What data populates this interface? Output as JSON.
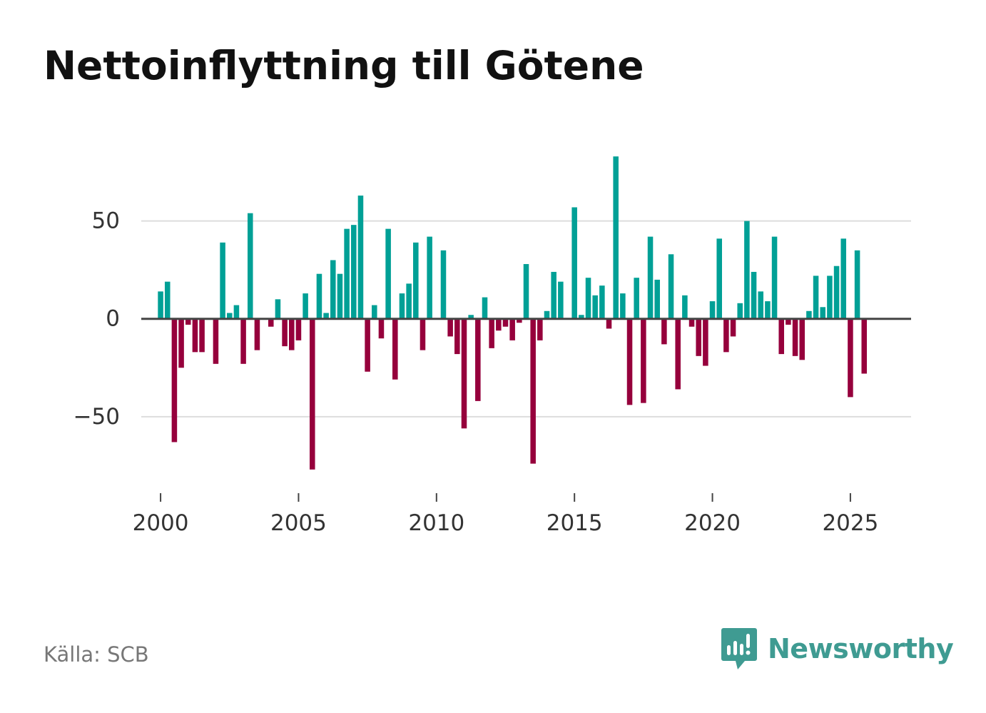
{
  "title": "Nettoinflyttning till Götene",
  "source": "Källa: SCB",
  "brand": {
    "name": "Newsworthy",
    "icon": "newsworthy-logo-icon",
    "color": "#3f9b92"
  },
  "colors": {
    "positive": "#00a096",
    "negative": "#96003c",
    "grid": "#dddddd",
    "zero_line": "#444444",
    "axis_text": "#333333"
  },
  "chart_data": {
    "type": "bar",
    "title": "Nettoinflyttning till Götene",
    "xlabel": "",
    "ylabel": "",
    "frequency": "quarterly",
    "x_start": 2000.0,
    "x_step": 0.25,
    "xlim": [
      1999.3,
      2027.2
    ],
    "ylim": [
      -88,
      90
    ],
    "grid": true,
    "y_ticks": [
      {
        "value": 50,
        "label": "50"
      },
      {
        "value": 0,
        "label": "0"
      },
      {
        "value": -50,
        "label": "−50"
      }
    ],
    "x_ticks": [
      {
        "value": 2000,
        "label": "2000"
      },
      {
        "value": 2005,
        "label": "2005"
      },
      {
        "value": 2010,
        "label": "2010"
      },
      {
        "value": 2015,
        "label": "2015"
      },
      {
        "value": 2020,
        "label": "2020"
      },
      {
        "value": 2025,
        "label": "2025"
      }
    ],
    "series": [
      {
        "name": "Nettoinflyttning",
        "values": [
          14,
          19,
          -63,
          -25,
          -3,
          -17,
          -17,
          0,
          -23,
          39,
          3,
          7,
          -23,
          54,
          -16,
          0,
          -4,
          10,
          -14,
          -16,
          -11,
          13,
          -77,
          23,
          3,
          30,
          23,
          46,
          48,
          63,
          -27,
          7,
          -10,
          46,
          -31,
          13,
          18,
          39,
          -16,
          42,
          0,
          35,
          -9,
          -18,
          -56,
          2,
          -42,
          11,
          -15,
          -6,
          -4,
          -11,
          -2,
          28,
          -74,
          -11,
          4,
          24,
          19,
          0,
          57,
          2,
          21,
          12,
          17,
          -5,
          83,
          13,
          -44,
          21,
          -43,
          42,
          20,
          -13,
          33,
          -36,
          12,
          -4,
          -19,
          -24,
          9,
          41,
          -17,
          -9,
          8,
          50,
          24,
          14,
          9,
          42,
          -18,
          -3,
          -19,
          -21,
          4,
          22,
          6,
          22,
          27,
          41,
          -40,
          35,
          -28
        ]
      }
    ]
  }
}
